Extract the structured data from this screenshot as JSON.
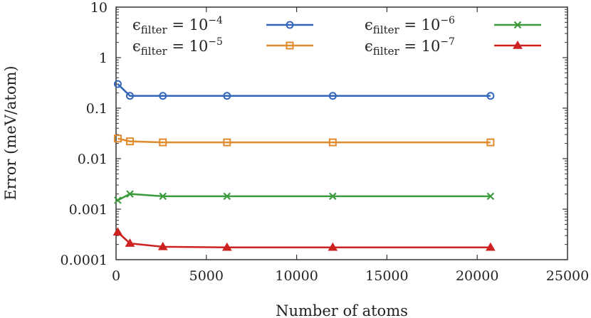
{
  "chart_data": {
    "type": "line",
    "xlabel": "Number of atoms",
    "ylabel": "Error (meV/atom)",
    "xlim": [
      0,
      25000
    ],
    "ylim": [
      0.0001,
      10
    ],
    "yscale": "log",
    "grid": false,
    "legend_position": "top",
    "x_ticks": [
      "0",
      "5000",
      "10000",
      "15000",
      "20000",
      "25000"
    ],
    "y_ticks": [
      "0.0001",
      "0.001",
      "0.01",
      "0.1",
      "1",
      "10"
    ],
    "x": [
      96,
      768,
      2592,
      6144,
      12000,
      20736
    ],
    "series": [
      {
        "name": "ϵfilter = 10−4",
        "legend_base": "ϵ",
        "legend_sub": "filter",
        "legend_mid": " = 10",
        "legend_sup": "−4",
        "color": "#3366bb",
        "marker": "circle",
        "values": [
          0.3,
          0.175,
          0.175,
          0.175,
          0.175,
          0.175
        ]
      },
      {
        "name": "ϵfilter = 10−5",
        "legend_base": "ϵ",
        "legend_sub": "filter",
        "legend_mid": " = 10",
        "legend_sup": "−5",
        "color": "#e08a2e",
        "marker": "square",
        "values": [
          0.025,
          0.022,
          0.021,
          0.021,
          0.021,
          0.021
        ]
      },
      {
        "name": "ϵfilter = 10−6",
        "legend_base": "ϵ",
        "legend_sub": "filter",
        "legend_mid": " = 10",
        "legend_sup": "−6",
        "color": "#3d9a3d",
        "marker": "x",
        "values": [
          0.0015,
          0.002,
          0.0018,
          0.0018,
          0.0018,
          0.0018
        ]
      },
      {
        "name": "ϵfilter = 10−7",
        "legend_base": "ϵ",
        "legend_sub": "filter",
        "legend_mid": " = 10",
        "legend_sup": "−7",
        "color": "#cc2222",
        "marker": "triangle",
        "values": [
          0.00035,
          0.00021,
          0.00018,
          0.000175,
          0.000175,
          0.000175
        ]
      }
    ]
  }
}
